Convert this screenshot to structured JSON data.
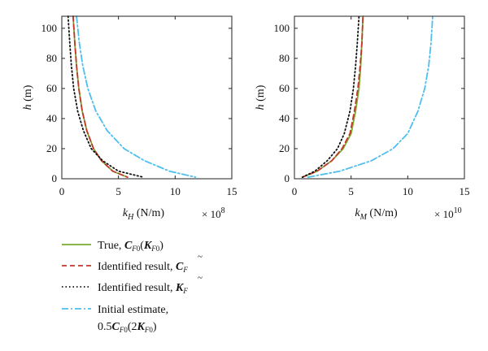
{
  "chart_data": [
    {
      "type": "line",
      "ylabel": "h (m)",
      "xlabel": "k_H (N/m)",
      "x_exponent": "× 10^8",
      "xlim": [
        0,
        15
      ],
      "ylim": [
        0,
        108
      ],
      "xticks": [
        0,
        5,
        10,
        15
      ],
      "yticks": [
        0,
        20,
        40,
        60,
        80,
        100
      ],
      "grid": false,
      "series": [
        {
          "name": "True",
          "color": "#77ac30",
          "dash": "solid",
          "x": [
            1.0,
            1.15,
            1.3,
            1.5,
            1.8,
            2.2,
            2.8,
            3.5,
            4.5,
            5.8
          ],
          "y": [
            108,
            90,
            75,
            60,
            45,
            32,
            20,
            12,
            5,
            1
          ]
        },
        {
          "name": "Identified result, C~F",
          "color": "#c0392b",
          "dash": "dashed",
          "x": [
            1.0,
            1.15,
            1.3,
            1.5,
            1.8,
            2.2,
            2.8,
            3.5,
            4.5,
            5.8
          ],
          "y": [
            108,
            90,
            75,
            60,
            45,
            32,
            20,
            12,
            5,
            1
          ]
        },
        {
          "name": "Identified result, K~F",
          "color": "#111111",
          "dash": "dotted",
          "x": [
            0.55,
            0.7,
            0.85,
            1.05,
            1.4,
            1.9,
            2.6,
            3.6,
            5.0,
            7.2
          ],
          "y": [
            108,
            90,
            75,
            60,
            45,
            32,
            20,
            12,
            5,
            1
          ]
        },
        {
          "name": "Initial estimate",
          "color": "#4dbeee",
          "dash": "dashdot",
          "x": [
            1.3,
            1.55,
            1.85,
            2.3,
            3.0,
            4.0,
            5.5,
            7.3,
            9.5,
            11.8
          ],
          "y": [
            108,
            90,
            75,
            60,
            45,
            32,
            20,
            12,
            5,
            1
          ]
        }
      ]
    },
    {
      "type": "line",
      "ylabel": "h (m)",
      "xlabel": "k_M (N/m)",
      "x_exponent": "× 10^10",
      "xlim": [
        0,
        15
      ],
      "ylim": [
        0,
        108
      ],
      "xticks": [
        0,
        5,
        10,
        15
      ],
      "yticks": [
        0,
        20,
        40,
        60,
        80,
        100
      ],
      "grid": false,
      "series": [
        {
          "name": "True",
          "color": "#77ac30",
          "dash": "solid",
          "x": [
            0.7,
            2.0,
            3.3,
            4.3,
            5.0,
            5.4,
            5.7,
            5.85,
            5.95,
            6.05
          ],
          "y": [
            1,
            5,
            12,
            20,
            30,
            45,
            60,
            75,
            90,
            108
          ]
        },
        {
          "name": "Identified result, C~F",
          "color": "#c0392b",
          "dash": "dashed",
          "x": [
            0.7,
            2.0,
            3.3,
            4.2,
            4.9,
            5.3,
            5.6,
            5.8,
            5.95,
            6.05
          ],
          "y": [
            1,
            5,
            12,
            20,
            30,
            45,
            60,
            75,
            90,
            108
          ]
        },
        {
          "name": "Identified result, K~F",
          "color": "#111111",
          "dash": "dotted",
          "x": [
            0.7,
            1.8,
            2.9,
            3.8,
            4.4,
            4.9,
            5.2,
            5.4,
            5.55,
            5.7
          ],
          "y": [
            1,
            5,
            12,
            20,
            30,
            45,
            60,
            75,
            90,
            108
          ]
        },
        {
          "name": "Initial estimate",
          "color": "#4dbeee",
          "dash": "dashdot",
          "x": [
            1.2,
            4.0,
            6.8,
            8.7,
            10.0,
            10.9,
            11.5,
            11.85,
            12.05,
            12.2
          ],
          "y": [
            1,
            5,
            12,
            20,
            30,
            45,
            60,
            75,
            90,
            108
          ]
        }
      ]
    }
  ],
  "legend": {
    "items": [
      {
        "key": "true",
        "prefix": "True, ",
        "math": "C_F0(K_F0)",
        "color": "#77ac30",
        "dash": "solid"
      },
      {
        "key": "c",
        "prefix": "Identified result, ",
        "math": "C~_F",
        "color": "#c0392b",
        "dash": "dashed"
      },
      {
        "key": "k",
        "prefix": "Identified result, ",
        "math": "K~_F",
        "color": "#111111",
        "dash": "dotted"
      },
      {
        "key": "init",
        "prefix": "Initial estimate,",
        "math": "0.5C_F0(2K_F0)",
        "color": "#4dbeee",
        "dash": "dashdot"
      }
    ]
  }
}
